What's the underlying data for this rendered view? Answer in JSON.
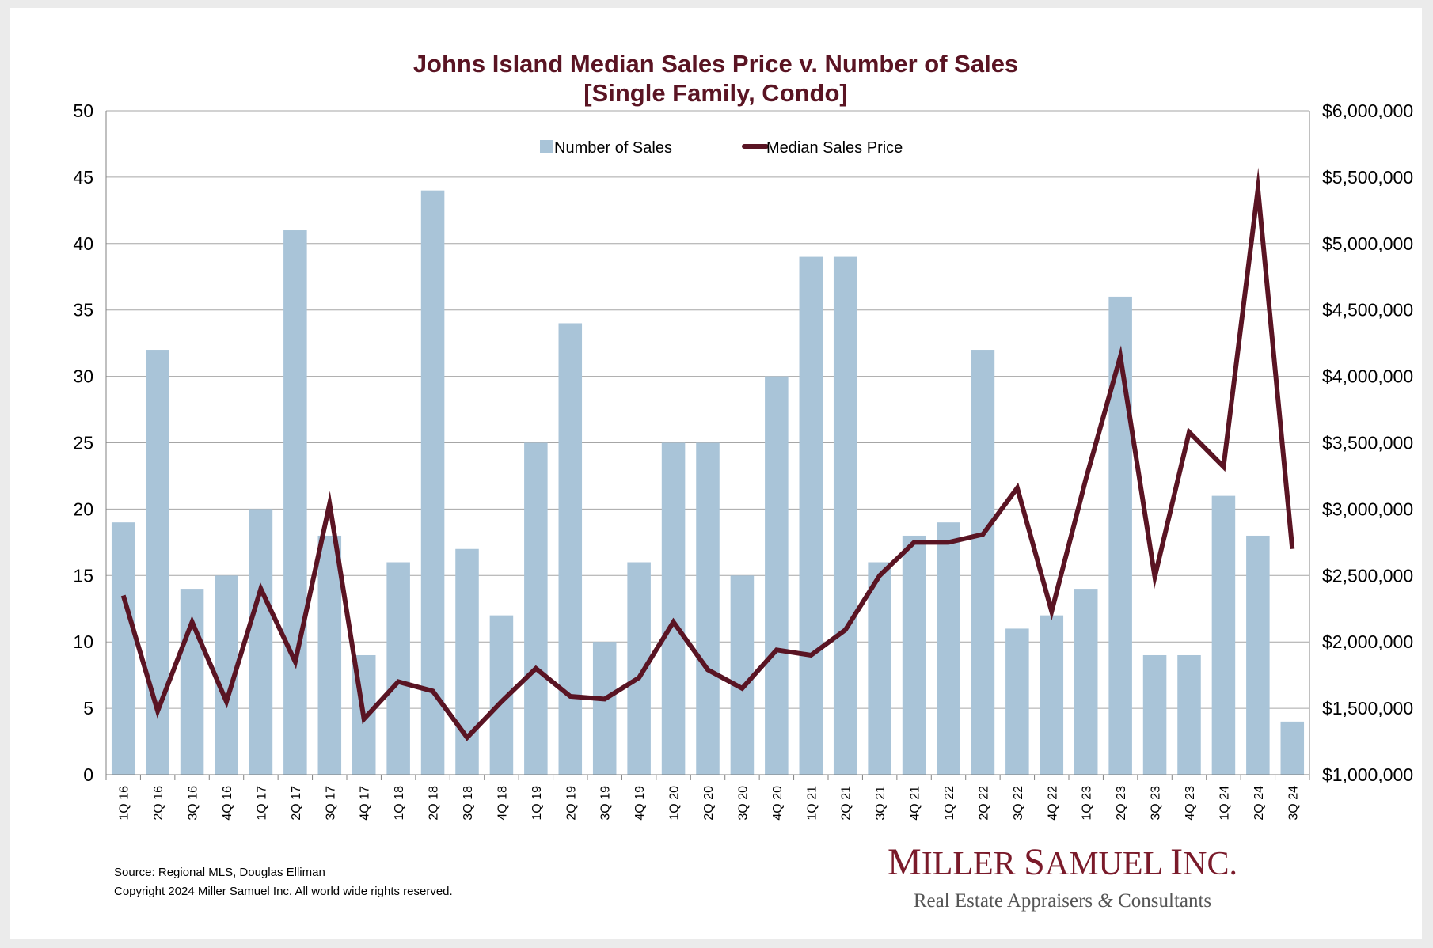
{
  "chart_data": {
    "type": "bar",
    "title": "Johns Island Median Sales Price v. Number of Sales",
    "subtitle": "[Single Family, Condo]",
    "categories": [
      "1Q 16",
      "2Q 16",
      "3Q 16",
      "4Q 16",
      "1Q 17",
      "2Q 17",
      "3Q 17",
      "4Q 17",
      "1Q 18",
      "2Q 18",
      "3Q 18",
      "4Q 18",
      "1Q 19",
      "2Q 19",
      "3Q 19",
      "4Q 19",
      "1Q 20",
      "2Q 20",
      "3Q 20",
      "4Q 20",
      "1Q 21",
      "2Q 21",
      "3Q 21",
      "4Q 21",
      "1Q 22",
      "2Q 22",
      "3Q 22",
      "4Q 22",
      "1Q 23",
      "2Q 23",
      "3Q 23",
      "4Q 23",
      "1Q 24",
      "2Q 24",
      "3Q 24"
    ],
    "series": [
      {
        "name": "Number of Sales",
        "type": "bar",
        "axis": "left",
        "color": "#a9c4d8",
        "values": [
          19,
          32,
          14,
          15,
          20,
          41,
          18,
          9,
          16,
          44,
          17,
          12,
          25,
          34,
          10,
          16,
          25,
          25,
          15,
          30,
          39,
          39,
          16,
          18,
          19,
          32,
          11,
          12,
          14,
          36,
          9,
          9,
          21,
          18,
          4
        ]
      },
      {
        "name": "Median Sales Price",
        "type": "line",
        "axis": "right",
        "color": "#5a1423",
        "values": [
          2350000,
          1480000,
          2150000,
          1550000,
          2400000,
          1850000,
          3040000,
          1420000,
          1700000,
          1630000,
          1280000,
          1550000,
          1800000,
          1590000,
          1570000,
          1730000,
          2150000,
          1790000,
          1650000,
          1940000,
          1900000,
          2090000,
          2500000,
          2750000,
          2750000,
          2810000,
          3160000,
          2230000,
          3230000,
          4150000,
          2490000,
          3580000,
          3320000,
          5410000,
          2700000
        ]
      }
    ],
    "y_left": {
      "ylim": [
        0,
        50
      ],
      "ticks": [
        "0",
        "5",
        "10",
        "15",
        "20",
        "25",
        "30",
        "35",
        "40",
        "45",
        "50"
      ]
    },
    "y_right": {
      "ylim": [
        1000000,
        6000000
      ],
      "ticks": [
        "$1,000,000",
        "$1,500,000",
        "$2,000,000",
        "$2,500,000",
        "$3,000,000",
        "$3,500,000",
        "$4,000,000",
        "$4,500,000",
        "$5,000,000",
        "$5,500,000",
        "$6,000,000"
      ]
    },
    "grid": true,
    "legend": "top-center"
  },
  "legend": {
    "sales_label": "Number of Sales",
    "price_label": "Median Sales Price"
  },
  "footer": {
    "source": "Source: Regional MLS, Douglas Elliman",
    "copyright": "Copyright 2024 Miller Samuel Inc.  All world wide rights reserved."
  },
  "logo": {
    "name": "Miller Samuel Inc.",
    "tagline": "Real Estate Appraisers & Consultants"
  }
}
